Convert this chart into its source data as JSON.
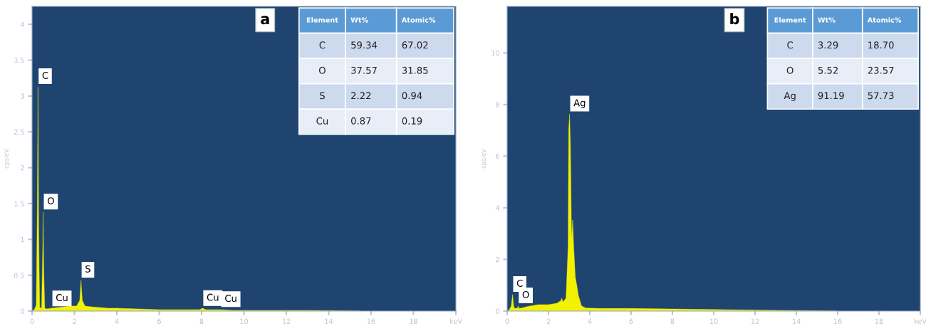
{
  "chart_data": [
    {
      "type": "area",
      "ylabel": "cps/eV",
      "xlim": [
        0,
        20
      ],
      "ylim": [
        0,
        4.25
      ],
      "xticks": [
        0,
        2,
        4,
        6,
        8,
        10,
        12,
        14,
        16,
        18,
        {
          "value": 20,
          "label": "keV"
        }
      ],
      "yticks": [
        0,
        0.5,
        1,
        1.5,
        2,
        2.5,
        3,
        3.5,
        4
      ],
      "series": [
        {
          "color": "#f2f200",
          "x": [
            0,
            0.1,
            0.2,
            0.25,
            0.28,
            0.31,
            0.36,
            0.45,
            0.5,
            0.525,
            0.55,
            0.6,
            0.7,
            0.9,
            1.2,
            1.5,
            1.8,
            2.1,
            2.25,
            2.31,
            2.37,
            2.5,
            2.8,
            3.2,
            3.6,
            4,
            5,
            6,
            7,
            7.9,
            8.05,
            8.2,
            8.9,
            9.5,
            11,
            13,
            15.5
          ],
          "values": [
            0,
            0.02,
            0.08,
            1.5,
            3.13,
            1.2,
            0.05,
            0.04,
            0.8,
            1.38,
            0.6,
            0.04,
            0.03,
            0.04,
            0.05,
            0.06,
            0.07,
            0.07,
            0.15,
            0.43,
            0.15,
            0.07,
            0.06,
            0.05,
            0.04,
            0.04,
            0.03,
            0.02,
            0.02,
            0.02,
            0.04,
            0.02,
            0.02,
            0.01,
            0.01,
            0.01,
            0.0
          ]
        }
      ],
      "annotations": [
        "a",
        "Element",
        "Wt%",
        "Atomic%",
        "C",
        "59.34",
        "67.02",
        "O",
        "37.57",
        "31.85",
        "S",
        "2.22",
        "0.94",
        "Cu",
        "0.87",
        "0.19",
        {
          "text": "C",
          "x": 0.28,
          "y": 3.13
        },
        {
          "text": "O",
          "x": 0.525,
          "y": 1.38
        },
        {
          "text": "S",
          "x": 2.31,
          "y": 0.43
        },
        {
          "text": "Cu",
          "x": 0.93,
          "y": 0.03
        },
        {
          "text": "Cu",
          "x": 8.05,
          "y": 0.035
        },
        {
          "text": "Cu",
          "x": 8.9,
          "y": 0.02
        }
      ],
      "grid": false,
      "legend": false
    },
    {
      "type": "area",
      "ylabel": "cps/eV",
      "xlim": [
        0,
        20
      ],
      "ylim": [
        0,
        11.8
      ],
      "xticks": [
        0,
        2,
        4,
        6,
        8,
        10,
        12,
        14,
        16,
        18,
        {
          "value": 20,
          "label": "keV"
        }
      ],
      "yticks": [
        0,
        2,
        4,
        6,
        8,
        10
      ],
      "series": [
        {
          "color": "#f2f200",
          "x": [
            0,
            0.1,
            0.2,
            0.26,
            0.32,
            0.4,
            0.5,
            0.53,
            0.58,
            0.7,
            1,
            1.5,
            2,
            2.4,
            2.6,
            2.64,
            2.7,
            2.85,
            2.95,
            2.98,
            3.02,
            3.06,
            3.12,
            3.17,
            3.22,
            3.3,
            3.37,
            3.45,
            3.6,
            3.8,
            4.5,
            6,
            8,
            10,
            12,
            14,
            16
          ],
          "values": [
            0,
            0.05,
            0.2,
            0.64,
            0.15,
            0.1,
            0.12,
            0.2,
            0.1,
            0.12,
            0.18,
            0.25,
            0.25,
            0.3,
            0.4,
            0.5,
            0.35,
            0.5,
            2.5,
            7.0,
            7.63,
            6.5,
            2.8,
            3.53,
            2.5,
            1.3,
            1.0,
            0.6,
            0.2,
            0.12,
            0.1,
            0.1,
            0.08,
            0.06,
            0.04,
            0.02,
            0
          ]
        }
      ],
      "annotations": [
        "b",
        "Element",
        "Wt%",
        "Atomic%",
        "C",
        "3.29",
        "18.70",
        "O",
        "5.52",
        "23.57",
        "Ag",
        "91.19",
        "57.73",
        {
          "text": "C",
          "x": 0.26,
          "y": 0.64
        },
        {
          "text": "O",
          "x": 0.53,
          "y": 0.2
        },
        {
          "text": "Ag",
          "x": 3.02,
          "y": 7.63
        }
      ],
      "grid": false,
      "legend": false
    }
  ]
}
